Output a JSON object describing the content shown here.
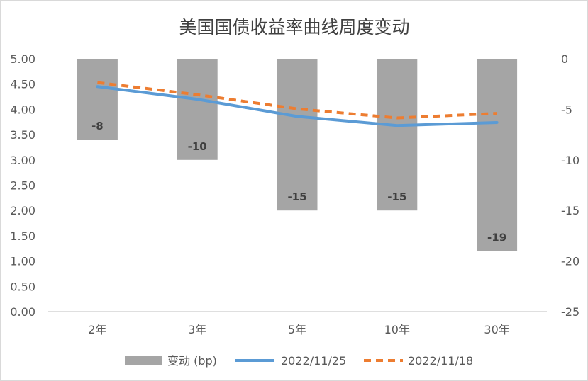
{
  "chart_data": {
    "type": "bar",
    "title": "美国国债收益率曲线周度变动",
    "categories": [
      "2年",
      "3年",
      "5年",
      "10年",
      "30年"
    ],
    "series": [
      {
        "name": "变动 (bp)",
        "kind": "bar",
        "axis": "right",
        "values": [
          -8,
          -10,
          -15,
          -15,
          -19
        ],
        "labels": [
          "-8",
          "-10",
          "-15",
          "-15",
          "-19"
        ],
        "color": "#a5a5a5"
      },
      {
        "name": "2022/11/25",
        "kind": "line",
        "axis": "left",
        "values": [
          4.45,
          4.2,
          3.86,
          3.68,
          3.74
        ],
        "color": "#5b9bd5",
        "dashed": false
      },
      {
        "name": "2022/11/18",
        "kind": "line",
        "axis": "left",
        "values": [
          4.53,
          4.29,
          4.01,
          3.83,
          3.92
        ],
        "color": "#ed7d31",
        "dashed": true
      }
    ],
    "y_left": {
      "ylim": [
        0,
        5
      ],
      "ticks": [
        "0.00",
        "0.50",
        "1.00",
        "1.50",
        "2.00",
        "2.50",
        "3.00",
        "3.50",
        "4.00",
        "4.50",
        "5.00"
      ]
    },
    "y_right": {
      "ylim": [
        -25,
        0
      ],
      "ticks": [
        "-25",
        "-20",
        "-15",
        "-10",
        "-5",
        "0"
      ]
    },
    "legend_position": "bottom",
    "grid": false
  }
}
